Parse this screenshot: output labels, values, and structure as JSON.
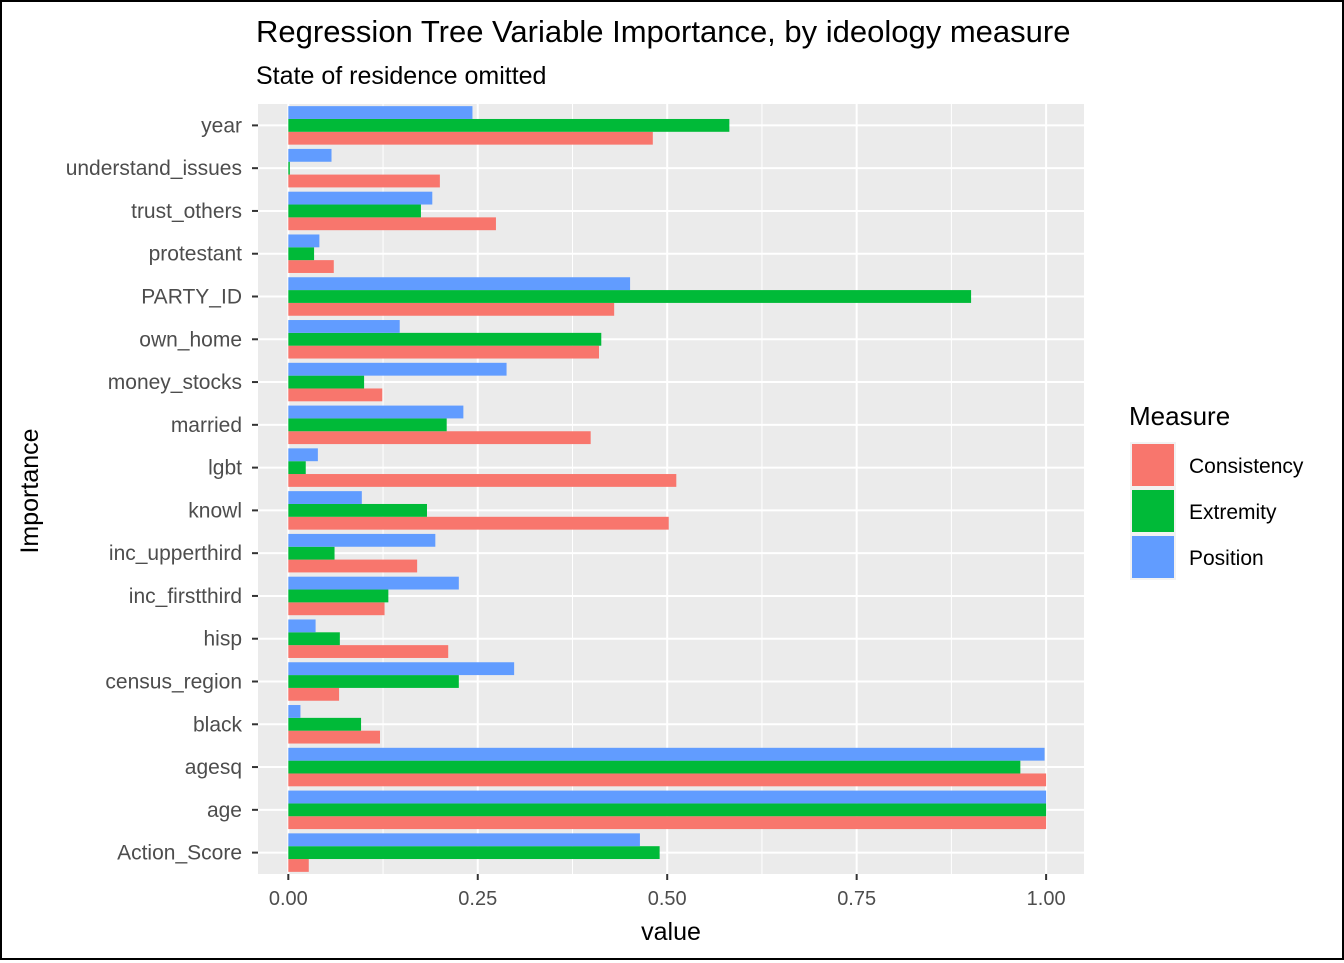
{
  "chart_data": {
    "type": "bar",
    "orientation": "horizontal",
    "title": "Regression Tree Variable Importance, by ideology measure",
    "subtitle": "State of residence omitted",
    "xlabel": "value",
    "ylabel": "Importance",
    "xlim": [
      -0.04,
      1.05
    ],
    "xticks": [
      0,
      0.25,
      0.5,
      0.75,
      1.0
    ],
    "xtick_labels": [
      "0.00",
      "0.25",
      "0.50",
      "0.75",
      "1.00"
    ],
    "grid": true,
    "legend_title": "Measure",
    "legend_position": "right",
    "categories": [
      "Action_Score",
      "age",
      "agesq",
      "black",
      "census_region",
      "hisp",
      "inc_firstthird",
      "inc_upperthird",
      "knowl",
      "lgbt",
      "married",
      "money_stocks",
      "own_home",
      "PARTY_ID",
      "protestant",
      "trust_others",
      "understand_issues",
      "year"
    ],
    "series": [
      {
        "name": "Consistency",
        "color": "#F8766D",
        "values": [
          0.027,
          1.0,
          1.0,
          0.121,
          0.067,
          0.211,
          0.127,
          0.17,
          0.502,
          0.512,
          0.399,
          0.124,
          0.41,
          0.43,
          0.06,
          0.274,
          0.2,
          0.481
        ]
      },
      {
        "name": "Extremity",
        "color": "#00BA38",
        "values": [
          0.49,
          1.0,
          0.966,
          0.096,
          0.225,
          0.068,
          0.132,
          0.061,
          0.183,
          0.023,
          0.209,
          0.1,
          0.413,
          0.901,
          0.034,
          0.175,
          0.002,
          0.582
        ]
      },
      {
        "name": "Position",
        "color": "#619CFF",
        "values": [
          0.464,
          1.0,
          0.998,
          0.016,
          0.298,
          0.036,
          0.225,
          0.194,
          0.097,
          0.039,
          0.231,
          0.288,
          0.147,
          0.451,
          0.041,
          0.19,
          0.057,
          0.243
        ]
      }
    ]
  }
}
